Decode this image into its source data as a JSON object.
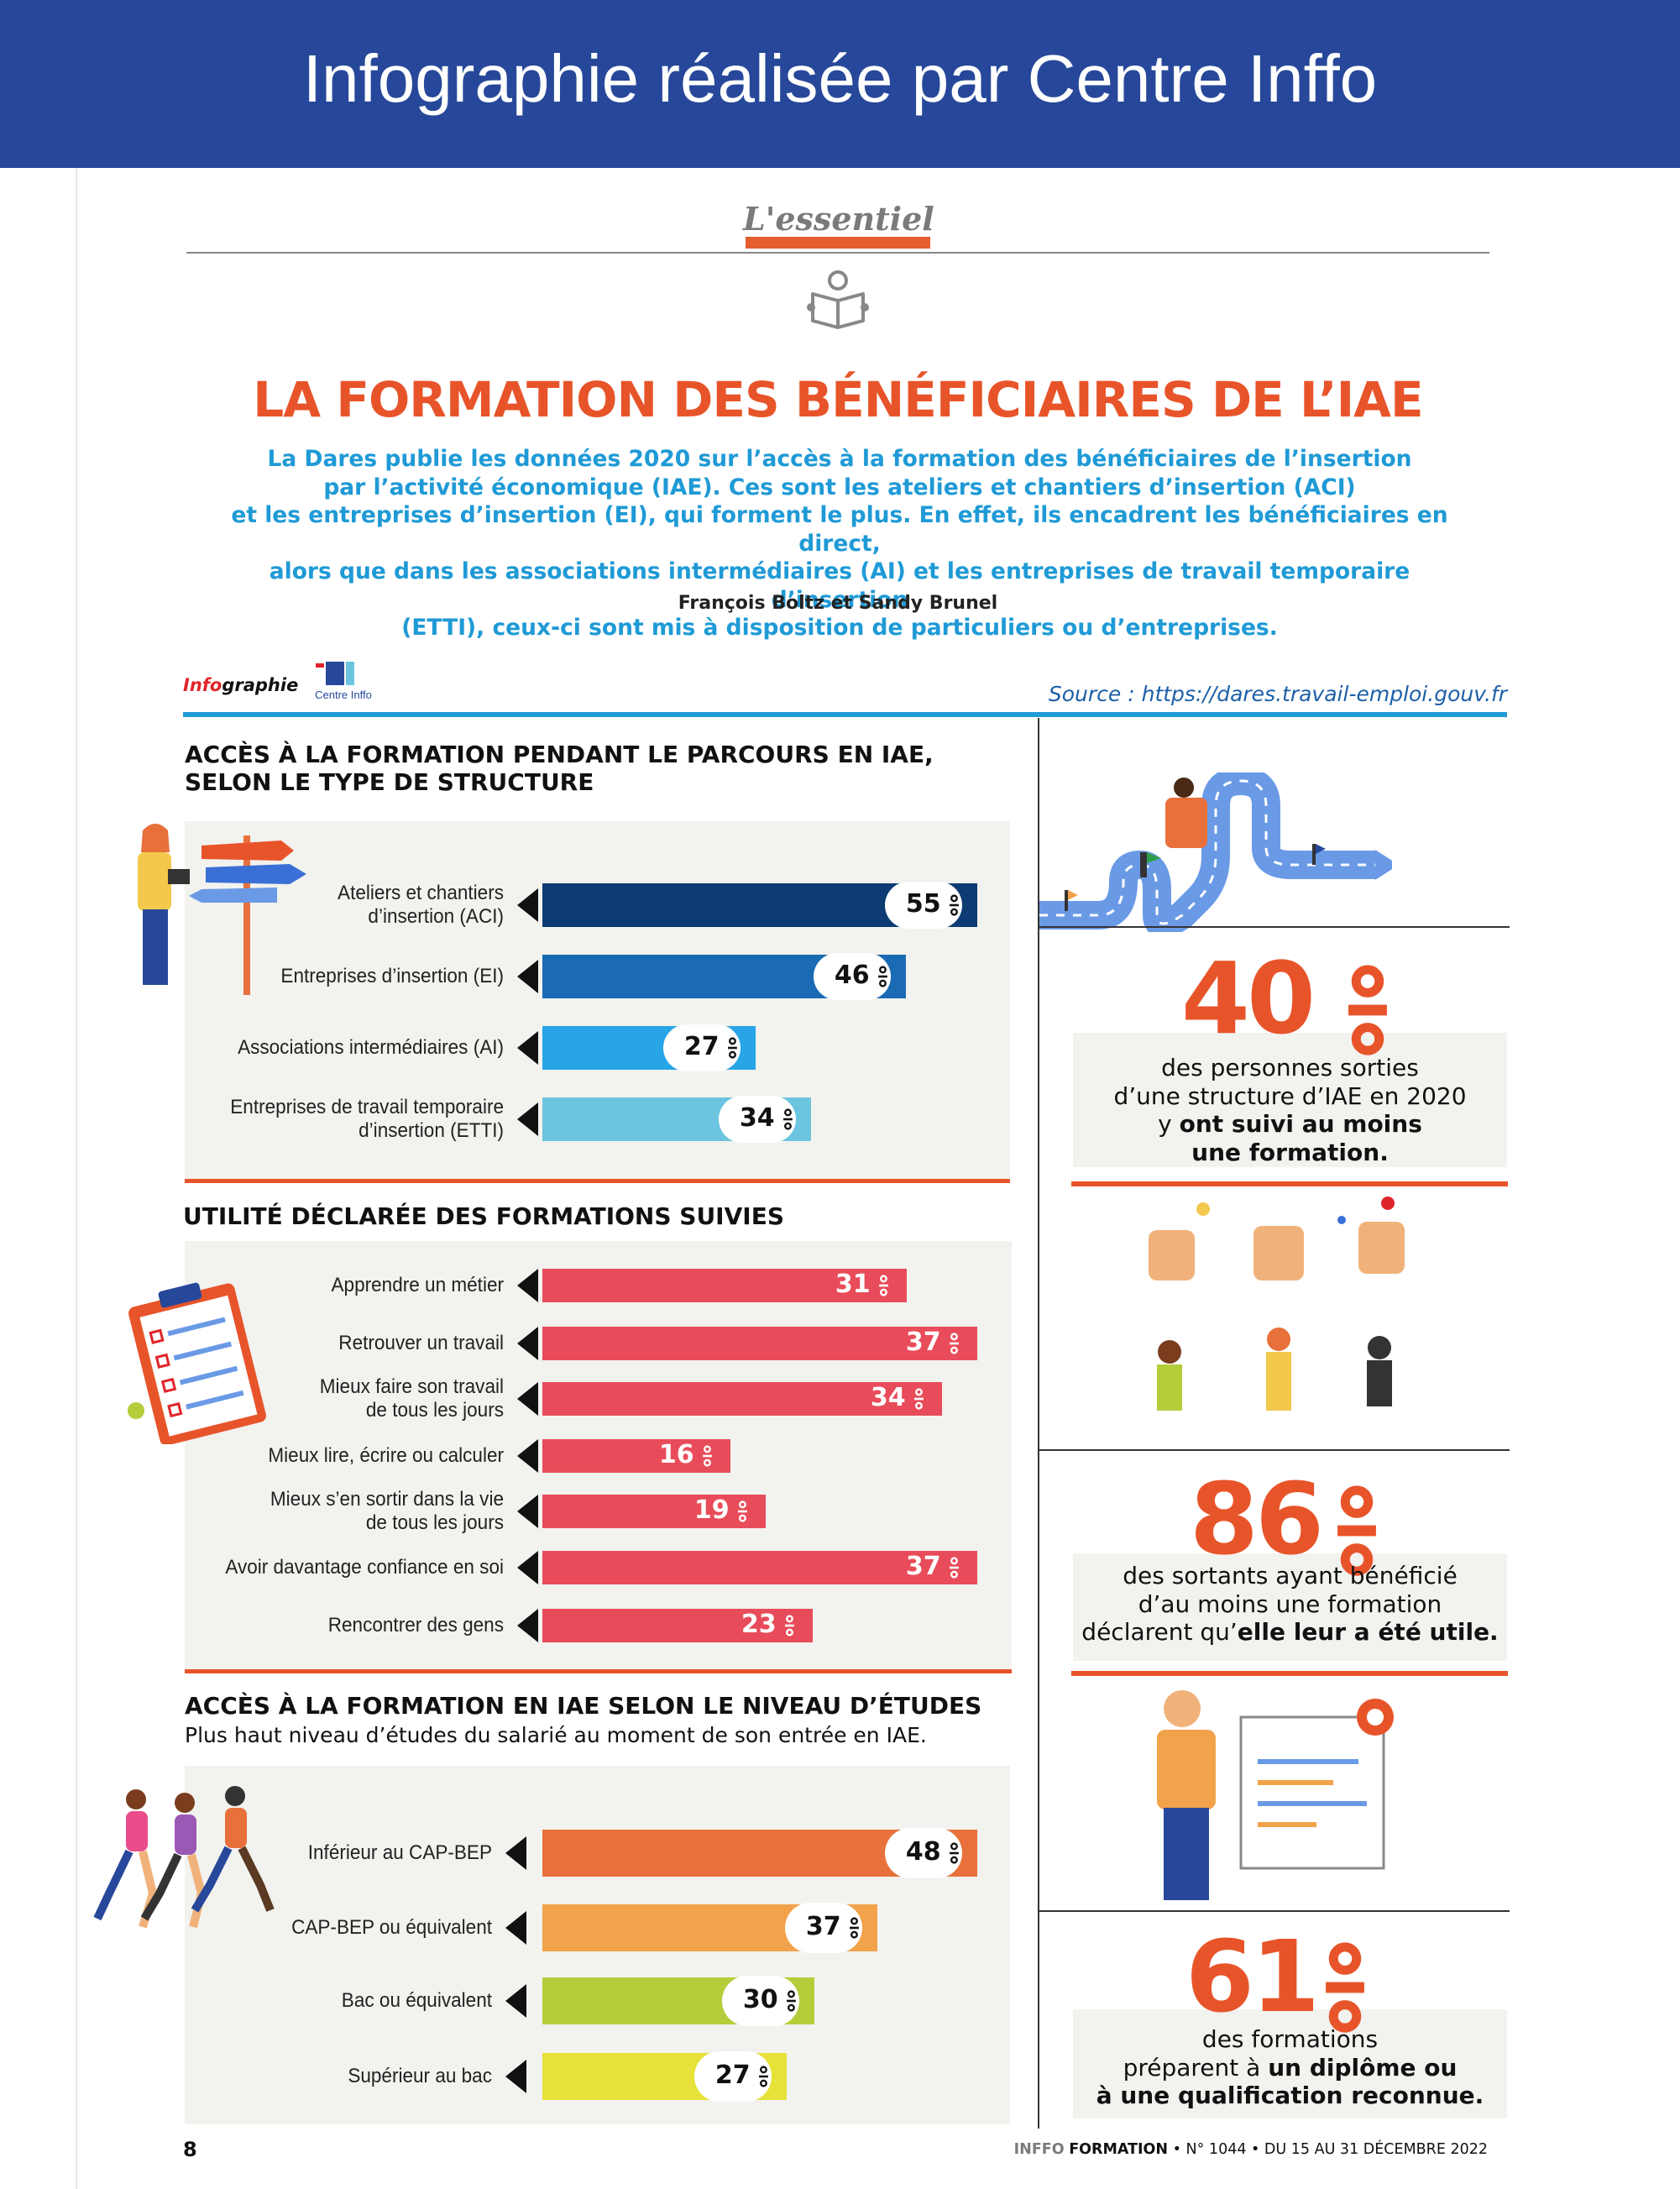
{
  "banner": {
    "title": "Infographie réalisée par Centre Inffo"
  },
  "essentiel": {
    "label": "L'essentiel"
  },
  "header": {
    "title": "LA FORMATION DES BÉNÉFICIAIRES DE L’IAE",
    "intro_lines": [
      "La Dares publie les données 2020 sur l’accès à la formation des bénéficiaires de l’insertion",
      "par l’activité économique (IAE). Ces sont les ateliers et chantiers d’insertion (ACI)",
      "et les entreprises d’insertion (EI), qui forment le plus. En effet, ils encadrent les bénéficiaires en direct,",
      "alors que dans les associations intermédiaires (AI) et les entreprises de travail temporaire d’insertion",
      "(ETTI), ceux-ci sont mis à disposition de particuliers ou d’entreprises."
    ],
    "authors": "François Boltz et Sandy Brunel"
  },
  "infobar": {
    "label_red": "Info",
    "label_rest": "graphie",
    "logo_text": "Centre Inffo",
    "source": "Source : https://dares.travail-emploi.gouv.fr"
  },
  "sections": {
    "acces_title_l1": "ACCÈS À LA FORMATION PENDANT LE PARCOURS EN IAE,",
    "acces_title_l2": "SELON LE TYPE DE STRUCTURE",
    "utilite_title": "UTILITÉ DÉCLARÉE DES FORMATIONS SUIVIES",
    "etudes_title": "ACCÈS À LA FORMATION EN IAE SELON LE NIVEAU D’ÉTUDES",
    "etudes_subtitle": "Plus haut niveau d’études du salarié au moment de son entrée en IAE."
  },
  "chart_data": [
    {
      "type": "bar",
      "orientation": "horizontal",
      "title": "ACCÈS À LA FORMATION PENDANT LE PARCOURS EN IAE, SELON LE TYPE DE STRUCTURE",
      "categories": [
        [
          "Ateliers et chantiers",
          "d’insertion (ACI)"
        ],
        [
          "Entreprises d’insertion (EI)"
        ],
        [
          "Associations intermédiaires (AI)"
        ],
        [
          "Entreprises de travail temporaire",
          "d’insertion (ETTI)"
        ]
      ],
      "values": [
        55,
        46,
        27,
        34
      ],
      "unit": "%",
      "colors": [
        "#0d3b73",
        "#1a6bb4",
        "#27a5e6",
        "#6cc5e0"
      ],
      "xlim": [
        0,
        55
      ]
    },
    {
      "type": "bar",
      "orientation": "horizontal",
      "title": "UTILITÉ DÉCLARÉE DES FORMATIONS SUIVIES",
      "categories": [
        [
          "Apprendre un métier"
        ],
        [
          "Retrouver un travail"
        ],
        [
          "Mieux faire son travail",
          "de tous les jours"
        ],
        [
          "Mieux lire, écrire ou calculer"
        ],
        [
          "Mieux s’en sortir dans la vie",
          "de tous les jours"
        ],
        [
          "Avoir davantage confiance en soi"
        ],
        [
          "Rencontrer des gens"
        ]
      ],
      "values": [
        31,
        37,
        34,
        16,
        19,
        37,
        23
      ],
      "unit": "%",
      "colors": [
        "#e84c5a"
      ],
      "xlim": [
        0,
        37
      ]
    },
    {
      "type": "bar",
      "orientation": "horizontal",
      "title": "ACCÈS À LA FORMATION EN IAE SELON LE NIVEAU D’ÉTUDES",
      "subtitle": "Plus haut niveau d’études du salarié au moment de son entrée en IAE.",
      "categories": [
        [
          "Inférieur au CAP-BEP"
        ],
        [
          "CAP-BEP ou équivalent"
        ],
        [
          "Bac ou équivalent"
        ],
        [
          "Supérieur au bac"
        ]
      ],
      "values": [
        48,
        37,
        30,
        27
      ],
      "unit": "%",
      "colors": [
        "#e8703a",
        "#f2a24a",
        "#b5cd3a",
        "#e6e23a"
      ],
      "xlim": [
        0,
        48
      ]
    }
  ],
  "stats": [
    {
      "value": "40",
      "unit": "%",
      "lines": [
        [
          {
            "t": "des personnes sorties",
            "b": false
          }
        ],
        [
          {
            "t": "d’une structure d’IAE en 2020",
            "b": false
          }
        ],
        [
          {
            "t": "y ",
            "b": false
          },
          {
            "t": "ont suivi au moins",
            "b": true
          }
        ],
        [
          {
            "t": "une formation.",
            "b": true
          }
        ]
      ]
    },
    {
      "value": "86",
      "unit": "%",
      "lines": [
        [
          {
            "t": "des sortants ayant bénéficié",
            "b": false
          }
        ],
        [
          {
            "t": "d’au moins une formation",
            "b": false
          }
        ],
        [
          {
            "t": "déclarent qu’",
            "b": false
          },
          {
            "t": "elle leur a été utile.",
            "b": true
          }
        ]
      ]
    },
    {
      "value": "61",
      "unit": "%",
      "lines": [
        [
          {
            "t": "des formations",
            "b": false
          }
        ],
        [
          {
            "t": "préparent à ",
            "b": false
          },
          {
            "t": "un diplôme ou",
            "b": true
          }
        ],
        [
          {
            "t": "à une qualification reconnue.",
            "b": true
          }
        ]
      ]
    }
  ],
  "footer": {
    "page": "8",
    "mag_bold1": "INFFO",
    "mag_bold2": "FORMATION",
    "mag_rest": " • N° 1044 • DU 15 AU 31 DÉCEMBRE 2022"
  },
  "colors": {
    "banner": "#27489a",
    "accent": "#e8542a",
    "intro": "#1f9ad6",
    "panel": "#f2f2ef"
  }
}
